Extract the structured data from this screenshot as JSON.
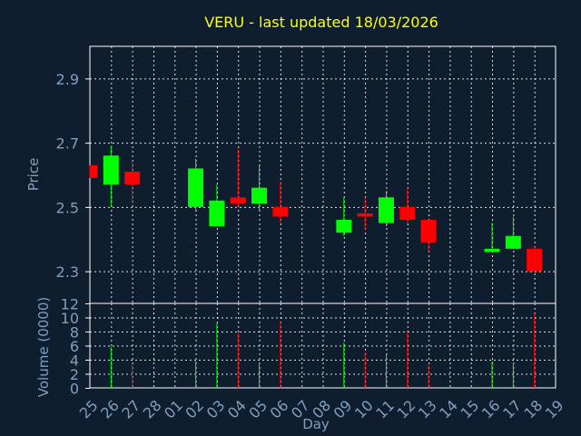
{
  "chart_data": {
    "type": "candlestick",
    "title": "VERU - last updated 18/03/2026",
    "xlabel": "Day",
    "price_panel": {
      "ylabel": "Price",
      "ylim": [
        2.2,
        3.0
      ],
      "yticks": [
        "2.3",
        "2.5",
        "2.7",
        "2.9"
      ],
      "grid": true
    },
    "volume_panel": {
      "ylabel": "Volume (0000)",
      "ylim": [
        0,
        12
      ],
      "yticks": [
        "0",
        "2",
        "4",
        "6",
        "8",
        "10",
        "12"
      ],
      "grid": true
    },
    "x_ticks": [
      "25",
      "26",
      "27",
      "28",
      "01",
      "02",
      "03",
      "04",
      "05",
      "06",
      "07",
      "08",
      "09",
      "10",
      "11",
      "12",
      "13",
      "14",
      "15",
      "16",
      "17",
      "18",
      "19"
    ],
    "up_color": "#00ff00",
    "down_color": "#ff0000",
    "candles": [
      {
        "day": "25",
        "open": 2.63,
        "high": 2.63,
        "low": 2.59,
        "close": 2.59,
        "volume": 0
      },
      {
        "day": "26",
        "open": 2.57,
        "high": 2.69,
        "low": 2.5,
        "close": 2.66,
        "volume": 5.8
      },
      {
        "day": "27",
        "open": 2.61,
        "high": 2.64,
        "low": 2.51,
        "close": 2.57,
        "volume": 3.3
      },
      {
        "day": "02",
        "open": 2.5,
        "high": 2.65,
        "low": 2.49,
        "close": 2.62,
        "volume": 3.8
      },
      {
        "day": "03",
        "open": 2.44,
        "high": 2.57,
        "low": 2.44,
        "close": 2.52,
        "volume": 9.2
      },
      {
        "day": "04",
        "open": 2.53,
        "high": 2.68,
        "low": 2.5,
        "close": 2.51,
        "volume": 7.8
      },
      {
        "day": "05",
        "open": 2.51,
        "high": 2.63,
        "low": 2.49,
        "close": 2.56,
        "volume": 3.4
      },
      {
        "day": "06",
        "open": 2.5,
        "high": 2.58,
        "low": 2.45,
        "close": 2.47,
        "volume": 9.4
      },
      {
        "day": "09",
        "open": 2.42,
        "high": 2.53,
        "low": 2.41,
        "close": 2.46,
        "volume": 6.4
      },
      {
        "day": "10",
        "open": 2.48,
        "high": 2.53,
        "low": 2.43,
        "close": 2.47,
        "volume": 5.0
      },
      {
        "day": "11",
        "open": 2.45,
        "high": 2.55,
        "low": 2.44,
        "close": 2.53,
        "volume": 4.8
      },
      {
        "day": "12",
        "open": 2.5,
        "high": 2.56,
        "low": 2.45,
        "close": 2.46,
        "volume": 8.0
      },
      {
        "day": "13",
        "open": 2.46,
        "high": 2.46,
        "low": 2.36,
        "close": 2.39,
        "volume": 3.2
      },
      {
        "day": "16",
        "open": 2.36,
        "high": 2.45,
        "low": 2.36,
        "close": 2.37,
        "volume": 3.8
      },
      {
        "day": "17",
        "open": 2.37,
        "high": 2.47,
        "low": 2.37,
        "close": 2.41,
        "volume": 3.4
      },
      {
        "day": "18",
        "open": 2.37,
        "high": 2.38,
        "low": 2.3,
        "close": 2.3,
        "volume": 10.5
      }
    ]
  }
}
